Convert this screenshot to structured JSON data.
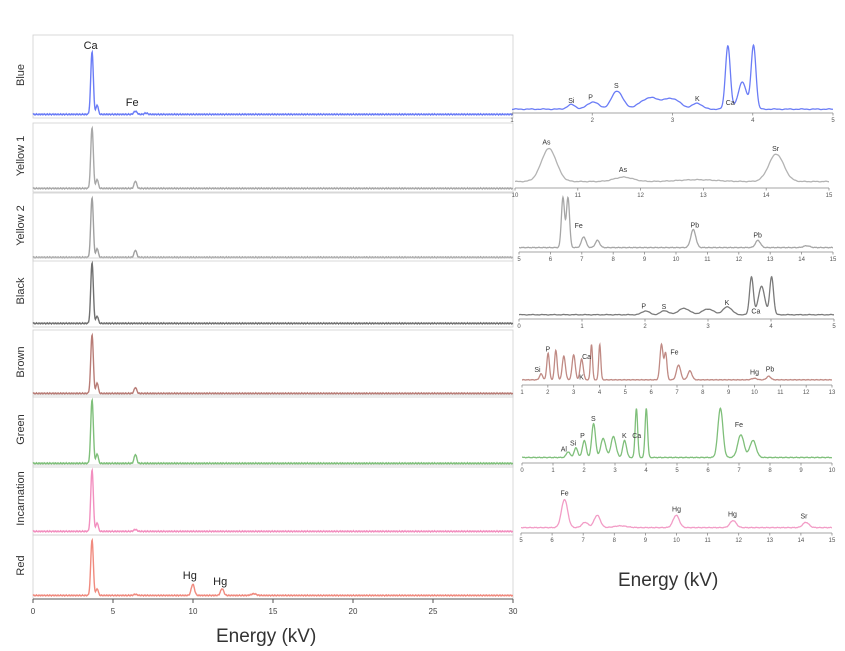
{
  "main": {
    "xlabel": "Energy (kV)",
    "xlim": [
      0,
      30
    ],
    "xticks": [
      0,
      5,
      10,
      15,
      20,
      25,
      30
    ],
    "rows": [
      {
        "label": "Blue",
        "color": "#6a7cf6",
        "peaks": [
          [
            3.69,
            1.0,
            0.08
          ],
          [
            4.01,
            0.15,
            0.07
          ],
          [
            6.4,
            0.05,
            0.1
          ],
          [
            7.06,
            0.02,
            0.1
          ]
        ],
        "labels": [
          {
            "text": "Ca",
            "x": 3.6,
            "y": 1.05
          },
          {
            "text": "Fe",
            "x": 6.2,
            "y": 0.14
          }
        ]
      },
      {
        "label": "Yellow 1",
        "color": "#a8a8a8",
        "peaks": [
          [
            3.69,
            1.0,
            0.08
          ],
          [
            4.01,
            0.15,
            0.07
          ],
          [
            6.4,
            0.12,
            0.08
          ]
        ],
        "labels": []
      },
      {
        "label": "Yellow 2",
        "color": "#a0a0a0",
        "peaks": [
          [
            3.69,
            1.0,
            0.08
          ],
          [
            4.01,
            0.15,
            0.07
          ],
          [
            6.4,
            0.12,
            0.08
          ]
        ],
        "labels": []
      },
      {
        "label": "Black",
        "color": "#707070",
        "peaks": [
          [
            3.69,
            1.0,
            0.08
          ],
          [
            4.01,
            0.12,
            0.07
          ]
        ],
        "labels": []
      },
      {
        "label": "Brown",
        "color": "#b87c76",
        "peaks": [
          [
            3.69,
            1.0,
            0.08
          ],
          [
            4.01,
            0.18,
            0.07
          ],
          [
            6.4,
            0.1,
            0.08
          ]
        ],
        "labels": []
      },
      {
        "label": "Green",
        "color": "#7fbf7a",
        "peaks": [
          [
            3.69,
            1.0,
            0.08
          ],
          [
            4.01,
            0.15,
            0.07
          ],
          [
            6.4,
            0.14,
            0.08
          ]
        ],
        "labels": []
      },
      {
        "label": "Incarnation",
        "color": "#f28fbf",
        "peaks": [
          [
            3.69,
            1.0,
            0.08
          ],
          [
            4.01,
            0.14,
            0.07
          ],
          [
            6.4,
            0.03,
            0.1
          ]
        ],
        "labels": []
      },
      {
        "label": "Red",
        "color": "#f08a7e",
        "peaks": [
          [
            3.69,
            1.0,
            0.08
          ],
          [
            4.01,
            0.12,
            0.07
          ],
          [
            9.99,
            0.2,
            0.1
          ],
          [
            11.82,
            0.12,
            0.1
          ],
          [
            13.8,
            0.03,
            0.15
          ],
          [
            6.4,
            0.02,
            0.1
          ]
        ],
        "labels": [
          {
            "text": "Hg",
            "x": 9.8,
            "y": 0.3
          },
          {
            "text": "Hg",
            "x": 11.7,
            "y": 0.2
          }
        ]
      }
    ]
  },
  "inset": {
    "xlabel": "Energy (kV)",
    "panels": [
      {
        "name": "Blue",
        "color": "#6a7cf6",
        "xlim": [
          1,
          5
        ],
        "xticks": [
          1,
          2,
          3,
          4,
          5
        ],
        "peaks": [
          [
            1.74,
            0.1,
            0.05
          ],
          [
            2.01,
            0.16,
            0.07
          ],
          [
            2.31,
            0.4,
            0.07
          ],
          [
            2.72,
            0.25,
            0.12
          ],
          [
            3.0,
            0.22,
            0.1
          ],
          [
            3.31,
            0.13,
            0.06
          ],
          [
            3.69,
            1.4,
            0.03
          ],
          [
            4.01,
            1.4,
            0.03
          ],
          [
            3.87,
            0.6,
            0.05
          ]
        ],
        "labels": [
          {
            "text": "Si",
            "x": 1.74,
            "y": 0.18
          },
          {
            "text": "P",
            "x": 1.98,
            "y": 0.25
          },
          {
            "text": "S",
            "x": 2.3,
            "y": 0.5
          },
          {
            "text": "K",
            "x": 3.31,
            "y": 0.22
          },
          {
            "text": "Ca",
            "x": 3.72,
            "y": 0.13
          }
        ]
      },
      {
        "name": "Yellow 1",
        "color": "#b3b3b3",
        "xlim": [
          10,
          15
        ],
        "xticks": [
          10,
          11,
          12,
          13,
          14,
          15
        ],
        "peaks": [
          [
            10.54,
            0.9,
            0.12
          ],
          [
            11.73,
            0.12,
            0.15
          ],
          [
            14.16,
            0.75,
            0.12
          ],
          [
            12.9,
            0.05,
            0.3
          ]
        ],
        "labels": [
          {
            "text": "As",
            "x": 10.5,
            "y": 1.05
          },
          {
            "text": "As",
            "x": 11.72,
            "y": 0.3
          },
          {
            "text": "Sr",
            "x": 14.15,
            "y": 0.88
          }
        ]
      },
      {
        "name": "Yellow 2",
        "color": "#a6a6a6",
        "xlim": [
          5,
          15
        ],
        "xticks": [
          5,
          6,
          7,
          8,
          9,
          10,
          11,
          12,
          13,
          14,
          15
        ],
        "peaks": [
          [
            6.4,
            1.4,
            0.05
          ],
          [
            6.56,
            1.4,
            0.05
          ],
          [
            7.06,
            0.3,
            0.07
          ],
          [
            7.5,
            0.2,
            0.07
          ],
          [
            10.55,
            0.5,
            0.08
          ],
          [
            12.61,
            0.2,
            0.08
          ],
          [
            14.16,
            0.05,
            0.1
          ]
        ],
        "labels": [
          {
            "text": "Fe",
            "x": 6.9,
            "y": 0.58
          },
          {
            "text": "Pb",
            "x": 10.6,
            "y": 0.6
          },
          {
            "text": "Pb",
            "x": 12.6,
            "y": 0.32
          }
        ]
      },
      {
        "name": "Black",
        "color": "#7a7a7a",
        "xlim": [
          0,
          5
        ],
        "xticks": [
          0,
          1,
          2,
          3,
          4,
          5
        ],
        "peaks": [
          [
            2.01,
            0.12,
            0.06
          ],
          [
            2.31,
            0.13,
            0.06
          ],
          [
            2.62,
            0.2,
            0.09
          ],
          [
            3.0,
            0.18,
            0.09
          ],
          [
            3.31,
            0.25,
            0.07
          ],
          [
            3.69,
            1.2,
            0.03
          ],
          [
            4.01,
            1.2,
            0.03
          ],
          [
            3.85,
            0.9,
            0.05
          ]
        ],
        "labels": [
          {
            "text": "P",
            "x": 1.98,
            "y": 0.24
          },
          {
            "text": "S",
            "x": 2.3,
            "y": 0.22
          },
          {
            "text": "K",
            "x": 3.3,
            "y": 0.35
          },
          {
            "text": "Ca",
            "x": 3.76,
            "y": 0.08
          }
        ]
      },
      {
        "name": "Brown",
        "color": "#c08a84",
        "xlim": [
          1,
          13
        ],
        "xticks": [
          1,
          2,
          3,
          4,
          5,
          6,
          7,
          8,
          9,
          10,
          11,
          12,
          13
        ],
        "peaks": [
          [
            1.74,
            0.2,
            0.06
          ],
          [
            2.01,
            0.9,
            0.05
          ],
          [
            2.31,
            1.0,
            0.05
          ],
          [
            2.62,
            0.8,
            0.06
          ],
          [
            3.0,
            0.85,
            0.06
          ],
          [
            3.31,
            0.7,
            0.06
          ],
          [
            3.69,
            1.2,
            0.04
          ],
          [
            4.01,
            1.2,
            0.04
          ],
          [
            6.4,
            1.2,
            0.06
          ],
          [
            6.56,
            0.9,
            0.05
          ],
          [
            7.06,
            0.5,
            0.08
          ],
          [
            7.5,
            0.3,
            0.08
          ],
          [
            9.99,
            0.05,
            0.1
          ],
          [
            10.55,
            0.12,
            0.08
          ]
        ],
        "labels": [
          {
            "text": "Si",
            "x": 1.6,
            "y": 0.3
          },
          {
            "text": "P",
            "x": 2.0,
            "y": 1.0
          },
          {
            "text": "Ca",
            "x": 3.5,
            "y": 0.75
          },
          {
            "text": "K",
            "x": 3.3,
            "y": 0.05
          },
          {
            "text": "Fe",
            "x": 6.9,
            "y": 0.9
          },
          {
            "text": "Hg",
            "x": 10.0,
            "y": 0.22
          },
          {
            "text": "Pb",
            "x": 10.6,
            "y": 0.32
          }
        ]
      },
      {
        "name": "Green",
        "color": "#7fbf7a",
        "xlim": [
          0,
          10
        ],
        "xticks": [
          0,
          1,
          2,
          3,
          4,
          5,
          6,
          7,
          8,
          9,
          10
        ],
        "peaks": [
          [
            1.49,
            0.15,
            0.06
          ],
          [
            1.74,
            0.25,
            0.06
          ],
          [
            2.01,
            0.45,
            0.06
          ],
          [
            2.31,
            0.9,
            0.06
          ],
          [
            2.62,
            0.5,
            0.08
          ],
          [
            2.95,
            0.55,
            0.08
          ],
          [
            3.31,
            0.45,
            0.06
          ],
          [
            3.69,
            1.3,
            0.04
          ],
          [
            4.01,
            1.3,
            0.04
          ],
          [
            6.4,
            1.3,
            0.08
          ],
          [
            7.06,
            0.6,
            0.1
          ],
          [
            7.45,
            0.45,
            0.1
          ]
        ],
        "labels": [
          {
            "text": "Al",
            "x": 1.35,
            "y": 0.2
          },
          {
            "text": "Si",
            "x": 1.65,
            "y": 0.35
          },
          {
            "text": "P",
            "x": 1.95,
            "y": 0.55
          },
          {
            "text": "S",
            "x": 2.3,
            "y": 1.0
          },
          {
            "text": "K",
            "x": 3.3,
            "y": 0.55
          },
          {
            "text": "Ca",
            "x": 3.7,
            "y": 0.55
          },
          {
            "text": "Fe",
            "x": 7.0,
            "y": 0.85
          }
        ]
      },
      {
        "name": "Incarnation",
        "color": "#f29cc6",
        "xlim": [
          5,
          15
        ],
        "xticks": [
          5,
          6,
          7,
          8,
          9,
          10,
          11,
          12,
          13,
          14,
          15
        ],
        "peaks": [
          [
            6.4,
            0.8,
            0.1
          ],
          [
            7.06,
            0.15,
            0.1
          ],
          [
            7.45,
            0.35,
            0.1
          ],
          [
            9.99,
            0.35,
            0.1
          ],
          [
            11.82,
            0.2,
            0.1
          ],
          [
            14.16,
            0.15,
            0.1
          ],
          [
            8.2,
            0.05,
            0.2
          ]
        ],
        "labels": [
          {
            "text": "Fe",
            "x": 6.4,
            "y": 0.95
          },
          {
            "text": "Hg",
            "x": 10.0,
            "y": 0.5
          },
          {
            "text": "Hg",
            "x": 11.8,
            "y": 0.35
          },
          {
            "text": "Sr",
            "x": 14.1,
            "y": 0.3
          }
        ]
      }
    ]
  }
}
